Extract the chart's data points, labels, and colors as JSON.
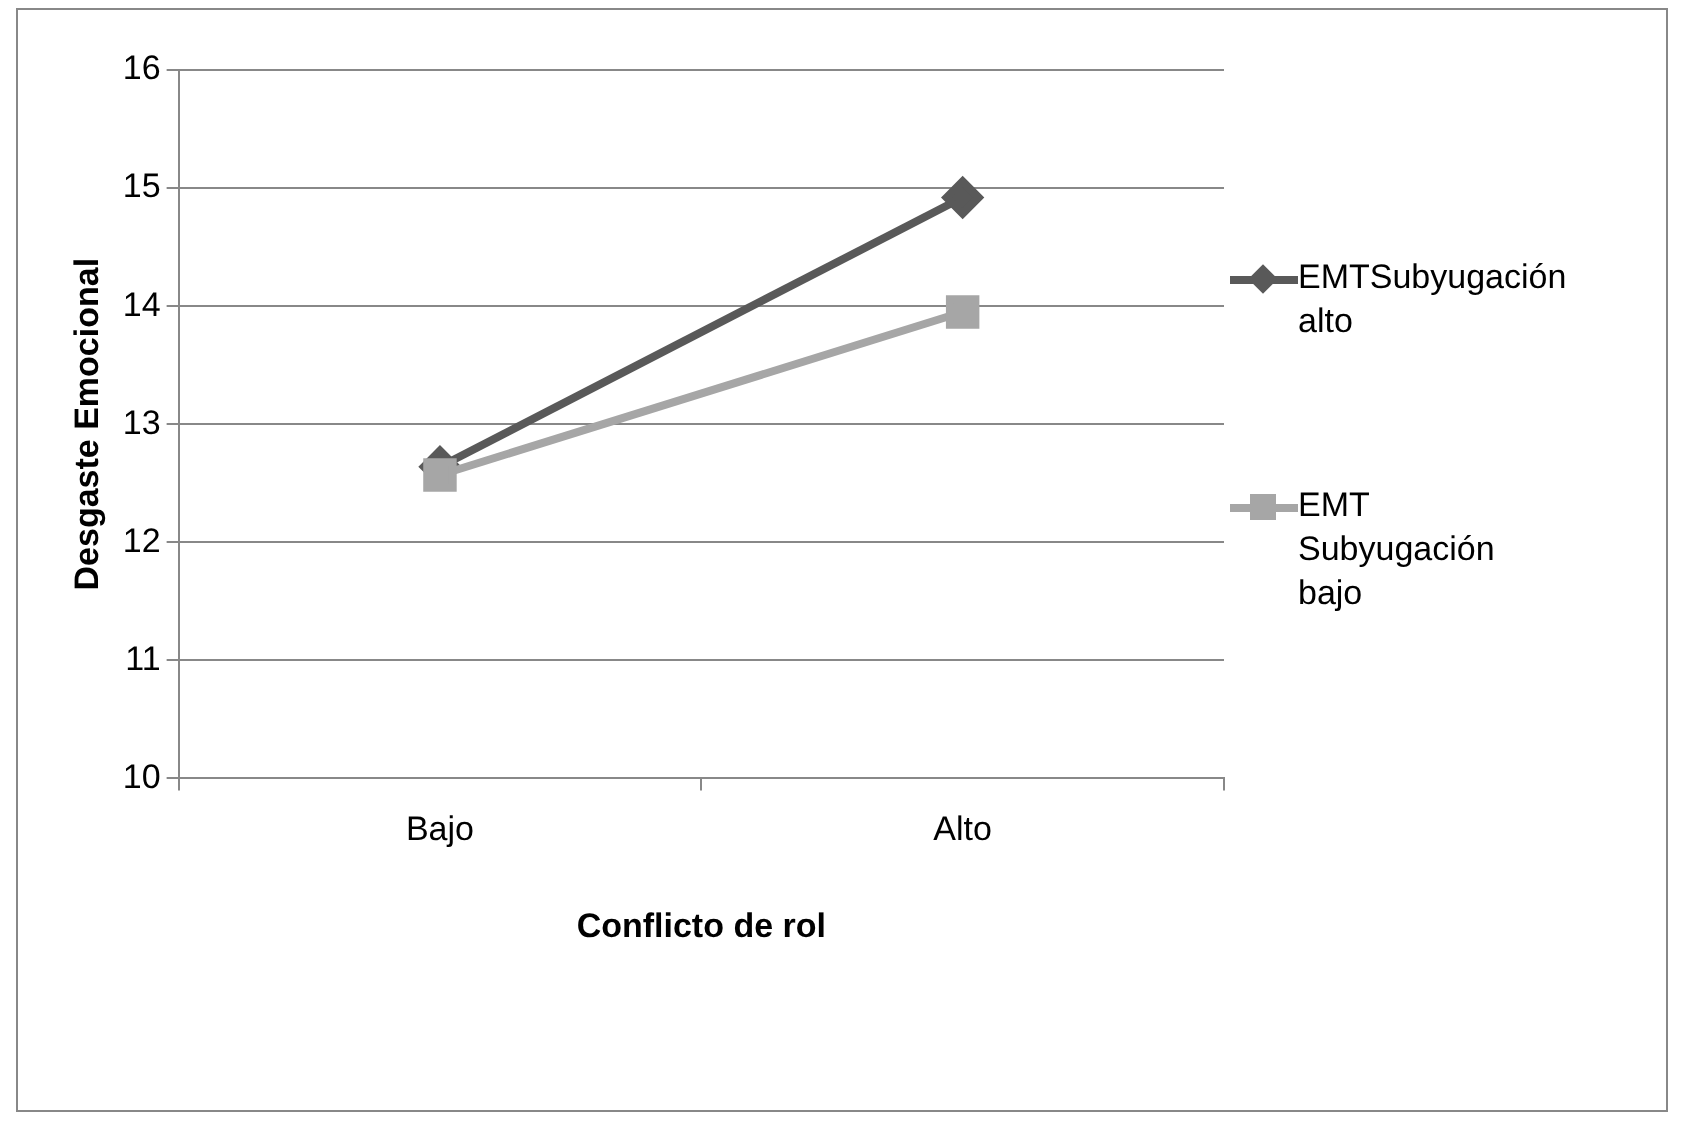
{
  "chart_data": {
    "type": "line",
    "xlabel": "Conflicto de rol",
    "ylabel": "Desgaste Emocional",
    "categories": [
      "Bajo",
      "Alto"
    ],
    "series": [
      {
        "name": "EMTSubyugación alto",
        "color": "#595959",
        "marker": "diamond",
        "values": [
          12.64,
          14.92
        ]
      },
      {
        "name": "EMT Subyugación bajo",
        "color": "#a6a6a6",
        "marker": "square",
        "values": [
          12.57,
          13.95
        ]
      }
    ],
    "ylim": [
      10,
      16
    ],
    "yticks": [
      10,
      11,
      12,
      13,
      14,
      15,
      16
    ],
    "grid": "y",
    "legend": "right",
    "line_style": "solid"
  }
}
